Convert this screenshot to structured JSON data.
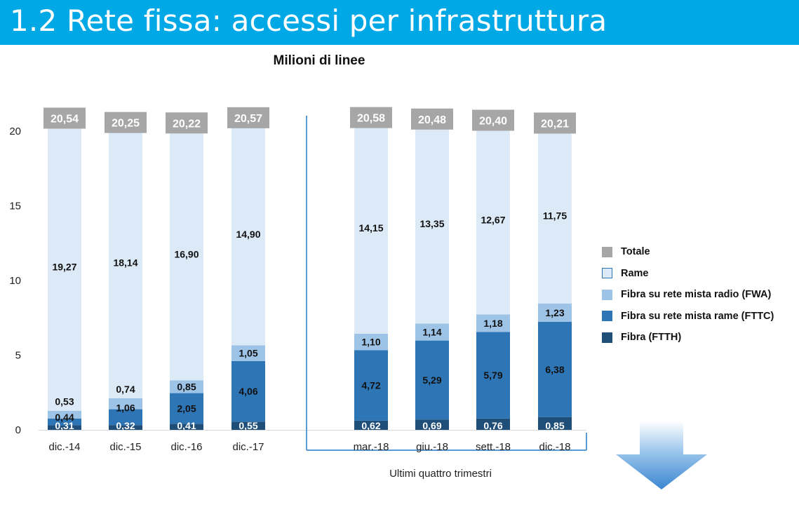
{
  "header": {
    "title": "1.2 Rete fissa: accessi per infrastruttura"
  },
  "colors": {
    "header_bg": "#00a8e6",
    "totale": "#a6a6a6",
    "rame": "#dce9f6",
    "fwa": "#9dc3e6",
    "fttc": "#2e75b6",
    "ftth": "#1f4e79",
    "bracket": "#5b9bd5"
  },
  "chart_data": {
    "type": "bar",
    "stacked": true,
    "title": "Milioni di linee",
    "categories": [
      "dic.-14",
      "dic.-15",
      "dic.-16",
      "dic.-17",
      "mar.-18",
      "giu.-18",
      "sett.-18",
      "dic.-18"
    ],
    "ylim": [
      0,
      20
    ],
    "yticks": [
      "0",
      "5",
      "10",
      "15",
      "20"
    ],
    "series": [
      {
        "name": "Fibra (FTTH)",
        "key": "ftth",
        "values": [
          0.31,
          0.32,
          0.41,
          0.55,
          0.62,
          0.69,
          0.76,
          0.85
        ],
        "labels": [
          "0,31",
          "0,32",
          "0,41",
          "0,55",
          "0,62",
          "0,69",
          "0,76",
          "0,85"
        ]
      },
      {
        "name": "Fibra su rete mista rame (FTTC)",
        "key": "fttc",
        "values": [
          0.44,
          1.06,
          2.05,
          4.06,
          4.72,
          5.29,
          5.79,
          6.38
        ],
        "labels": [
          "0,44",
          "1,06",
          "2,05",
          "4,06",
          "4,72",
          "5,29",
          "5,79",
          "6,38"
        ]
      },
      {
        "name": "Fibra su rete mista radio (FWA)",
        "key": "fwa",
        "values": [
          0.53,
          0.74,
          0.85,
          1.05,
          1.1,
          1.14,
          1.18,
          1.23
        ],
        "labels": [
          "0,53",
          "0,74",
          "0,85",
          "1,05",
          "1,10",
          "1,14",
          "1,18",
          "1,23"
        ]
      },
      {
        "name": "Rame",
        "key": "rame",
        "values": [
          19.27,
          18.14,
          16.9,
          14.9,
          14.15,
          13.35,
          12.67,
          11.75
        ],
        "labels": [
          "19,27",
          "18,14",
          "16,90",
          "14,90",
          "14,15",
          "13,35",
          "12,67",
          "11,75"
        ]
      }
    ],
    "totals": {
      "name": "Totale",
      "values": [
        20.54,
        20.25,
        20.22,
        20.57,
        20.58,
        20.48,
        20.4,
        20.21
      ],
      "labels": [
        "20,54",
        "20,25",
        "20,22",
        "20,57",
        "20,58",
        "20,48",
        "20,40",
        "20,21"
      ]
    },
    "group_annotation": "Ultimi quattro trimestri",
    "legend": {
      "position": "right",
      "items": [
        {
          "key": "totale",
          "label": "Totale"
        },
        {
          "key": "rame",
          "label": "Rame"
        },
        {
          "key": "fwa",
          "label": "Fibra su rete mista radio (FWA)"
        },
        {
          "key": "fttc",
          "label": "Fibra su rete mista rame (FTTC)"
        },
        {
          "key": "ftth",
          "label": "Fibra (FTTH)"
        }
      ]
    }
  }
}
